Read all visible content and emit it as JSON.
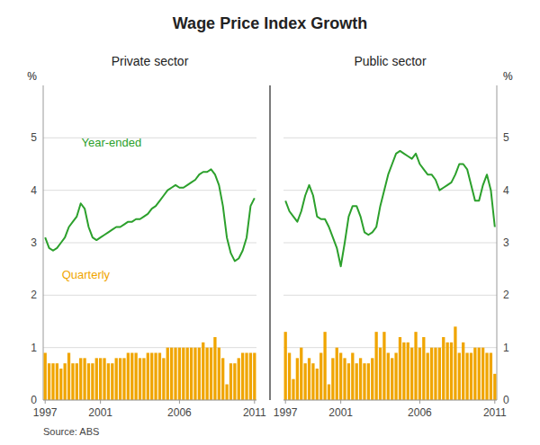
{
  "title": "Wage Price Index Growth",
  "source": "Source: ABS",
  "chart_data": [
    {
      "type": "bar",
      "title": "Private sector",
      "ylabel": "%",
      "categories": [
        "1997",
        null,
        null,
        null,
        null,
        null,
        null,
        null,
        null,
        null,
        null,
        null,
        null,
        null,
        "2001",
        null,
        null,
        null,
        null,
        null,
        null,
        null,
        null,
        null,
        null,
        null,
        null,
        null,
        null,
        null,
        null,
        null,
        null,
        null,
        "2006",
        null,
        null,
        null,
        null,
        null,
        null,
        null,
        null,
        null,
        null,
        null,
        null,
        null,
        null,
        null,
        null,
        null,
        null,
        "2011"
      ],
      "ylim": [
        0,
        6
      ],
      "yticks": [
        0,
        1,
        2,
        3,
        4,
        5
      ],
      "grid": true,
      "series": [
        {
          "name": "Quarterly",
          "type": "bar",
          "color": "#f0a500",
          "values": [
            0.9,
            0.7,
            0.7,
            0.7,
            0.6,
            0.7,
            0.9,
            0.7,
            0.7,
            0.8,
            0.8,
            0.7,
            0.7,
            0.8,
            0.8,
            0.8,
            0.7,
            0.7,
            0.8,
            0.8,
            0.8,
            0.9,
            0.9,
            0.9,
            0.8,
            0.8,
            0.9,
            0.9,
            0.9,
            0.9,
            0.8,
            1.0,
            1.0,
            1.0,
            1.0,
            1.0,
            1.0,
            1.0,
            1.0,
            1.0,
            1.1,
            1.0,
            1.0,
            1.2,
            1.0,
            0.8,
            0.3,
            0.7,
            0.7,
            0.8,
            0.9,
            0.9,
            0.9,
            0.9
          ]
        },
        {
          "name": "Year-ended",
          "type": "line",
          "color": "#2ca02c",
          "values": [
            3.1,
            2.9,
            2.85,
            2.9,
            3.0,
            3.1,
            3.3,
            3.4,
            3.5,
            3.75,
            3.65,
            3.3,
            3.1,
            3.05,
            3.1,
            3.15,
            3.2,
            3.25,
            3.3,
            3.3,
            3.35,
            3.4,
            3.4,
            3.45,
            3.45,
            3.5,
            3.55,
            3.65,
            3.7,
            3.8,
            3.9,
            4.0,
            4.05,
            4.1,
            4.05,
            4.05,
            4.1,
            4.15,
            4.2,
            4.3,
            4.35,
            4.35,
            4.4,
            4.3,
            4.1,
            3.7,
            3.1,
            2.8,
            2.65,
            2.7,
            2.85,
            3.1,
            3.7,
            3.85
          ]
        }
      ]
    },
    {
      "type": "bar",
      "title": "Public sector",
      "ylabel": "%",
      "categories": [
        "1997",
        null,
        null,
        null,
        null,
        null,
        null,
        null,
        null,
        null,
        null,
        null,
        null,
        null,
        "2001",
        null,
        null,
        null,
        null,
        null,
        null,
        null,
        null,
        null,
        null,
        null,
        null,
        null,
        null,
        null,
        null,
        null,
        null,
        null,
        "2006",
        null,
        null,
        null,
        null,
        null,
        null,
        null,
        null,
        null,
        null,
        null,
        null,
        null,
        null,
        null,
        null,
        null,
        null,
        "2011"
      ],
      "ylim": [
        0,
        6
      ],
      "yticks": [
        0,
        1,
        2,
        3,
        4,
        5
      ],
      "grid": true,
      "series": [
        {
          "type": "bar",
          "color": "#f0a500",
          "values": [
            1.3,
            0.9,
            0.4,
            0.8,
            1.0,
            0.7,
            0.8,
            0.7,
            0.6,
            0.9,
            1.3,
            0.3,
            0.8,
            1.0,
            0.9,
            0.8,
            0.7,
            0.9,
            0.7,
            0.8,
            0.7,
            0.7,
            0.8,
            1.3,
            1.0,
            1.3,
            0.9,
            0.8,
            0.9,
            1.2,
            1.1,
            1.1,
            1.0,
            1.3,
            1.0,
            1.2,
            0.9,
            1.0,
            1.0,
            1.0,
            1.2,
            1.1,
            1.1,
            1.4,
            0.9,
            1.1,
            0.9,
            0.9,
            1.0,
            1.0,
            1.0,
            0.9,
            0.9,
            0.5
          ]
        },
        {
          "type": "line",
          "color": "#2ca02c",
          "values": [
            3.8,
            3.6,
            3.5,
            3.4,
            3.6,
            3.9,
            4.1,
            3.9,
            3.5,
            3.45,
            3.45,
            3.3,
            3.1,
            2.9,
            2.55,
            3.0,
            3.5,
            3.7,
            3.7,
            3.5,
            3.2,
            3.15,
            3.2,
            3.3,
            3.7,
            4.0,
            4.3,
            4.5,
            4.7,
            4.75,
            4.7,
            4.65,
            4.6,
            4.7,
            4.5,
            4.4,
            4.3,
            4.3,
            4.2,
            4.0,
            4.05,
            4.1,
            4.15,
            4.3,
            4.5,
            4.5,
            4.4,
            4.1,
            3.8,
            3.8,
            4.1,
            4.3,
            4.0,
            3.3
          ]
        }
      ]
    }
  ]
}
